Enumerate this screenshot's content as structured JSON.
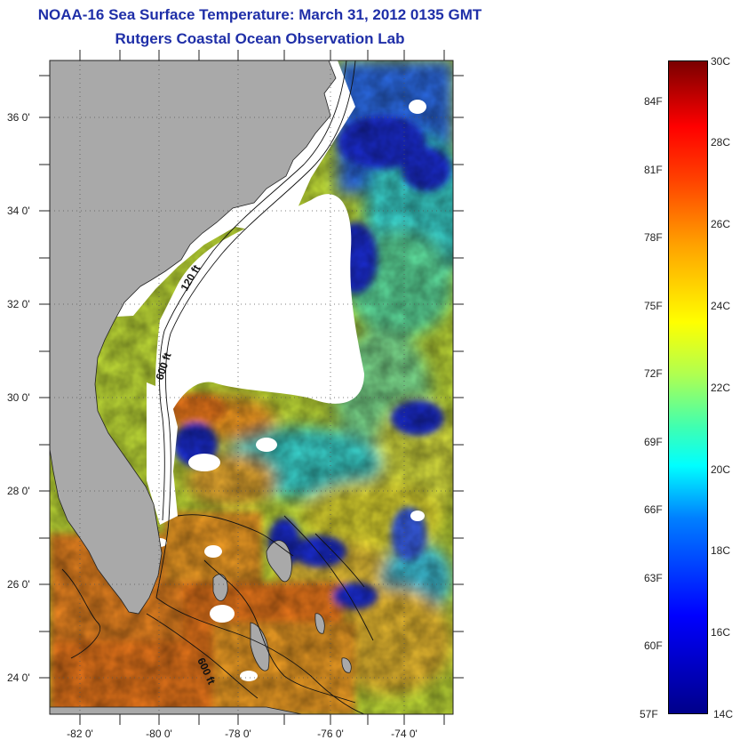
{
  "title": "NOAA-16 Sea Surface Temperature:  March 31, 2012 0135 GMT",
  "subtitle": "Rutgers Coastal Ocean Observation Lab",
  "map": {
    "lat_ticks": [
      "36 0'",
      "34 0'",
      "32 0'",
      "30 0'",
      "28 0'",
      "26 0'",
      "24 0'"
    ],
    "lon_ticks": [
      "-82 0'",
      "-80 0'",
      "-78 0'",
      "-76 0'",
      "-74 0'"
    ],
    "contour_labels": [
      "120 ft",
      "600 ft",
      "600 ft"
    ],
    "land_color": "#a9a9a9",
    "cloud_color": "#ffffff"
  },
  "colorbar": {
    "celsius_labels": [
      "30C",
      "28C",
      "26C",
      "24C",
      "22C",
      "20C",
      "18C",
      "16C",
      "14C"
    ],
    "fahrenheit_labels": [
      "84F",
      "81F",
      "78F",
      "75F",
      "72F",
      "69F",
      "66F",
      "63F",
      "60F",
      "57F"
    ],
    "range_c": [
      14,
      30
    ],
    "range_f": [
      57,
      86
    ]
  }
}
